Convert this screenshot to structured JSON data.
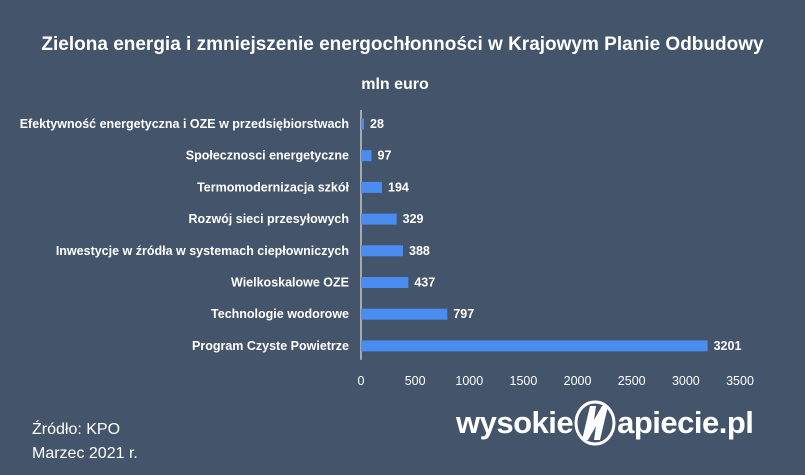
{
  "title": "Zielona energia i zmniejszenie energochłonności w Krajowym Planie Odbudowy",
  "unit": "mln euro",
  "chart_data": {
    "type": "bar",
    "orientation": "horizontal",
    "categories": [
      "Efektywność energetyczna i OZE w przedsiębiorstwach",
      "Społecznosci energetyczne",
      "Termomodernizacja szkół",
      "Rozwój sieci przesyłowych",
      "Inwestycje w źródła w systemach ciepłowniczych",
      "Wielkoskalowe OZE",
      "Technologie wodorowe",
      "Program Czyste Powietrze"
    ],
    "values": [
      28,
      97,
      194,
      329,
      388,
      437,
      797,
      3201
    ],
    "xlim": [
      0,
      3500
    ],
    "xticks": [
      0,
      500,
      1000,
      1500,
      2000,
      2500,
      3000,
      3500
    ],
    "bar_color": "#4a8cf0",
    "grid": false,
    "legend": "none"
  },
  "source": {
    "line1": "Źródło: KPO",
    "line2": "Marzec 2021 r."
  },
  "logo": {
    "left": "wysokie",
    "right": "apiecie.pl"
  },
  "colors": {
    "background": "#44546a",
    "text": "#ffffff"
  }
}
